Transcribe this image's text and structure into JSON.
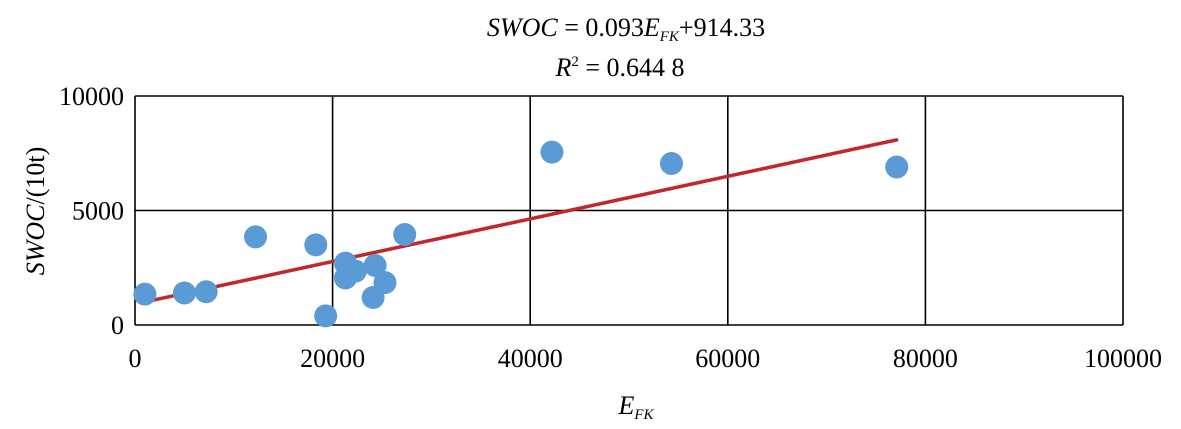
{
  "chart_data": {
    "type": "scatter",
    "title": {
      "line1": {
        "lhs": "SWOC",
        "eq": " = 0.093",
        "var": "E",
        "sub": "FK",
        "tail": "+914.33"
      },
      "line2": {
        "var": "R",
        "sup": "2",
        "tail": " = 0.644 8"
      }
    },
    "xlabel": {
      "main": "E",
      "sub": "FK"
    },
    "ylabel": {
      "main": "SWOC",
      "tail": "/(10t)"
    },
    "xlim": [
      0,
      100000
    ],
    "ylim": [
      0,
      10000
    ],
    "x_ticks": [
      "0",
      "20000",
      "40000",
      "60000",
      "80000",
      "100000"
    ],
    "y_ticks": [
      "0",
      "5000",
      "10000"
    ],
    "grid": true,
    "colors": {
      "points": "#5b9bd5",
      "trendline": "#c0282d",
      "grid": "#000000"
    },
    "points": [
      {
        "x": 1000,
        "y": 1350
      },
      {
        "x": 5000,
        "y": 1400
      },
      {
        "x": 7200,
        "y": 1450
      },
      {
        "x": 12200,
        "y": 3850
      },
      {
        "x": 18300,
        "y": 3500
      },
      {
        "x": 19300,
        "y": 400
      },
      {
        "x": 21300,
        "y": 2700
      },
      {
        "x": 21300,
        "y": 2050
      },
      {
        "x": 22300,
        "y": 2350
      },
      {
        "x": 24300,
        "y": 2600
      },
      {
        "x": 24100,
        "y": 1200
      },
      {
        "x": 25300,
        "y": 1850
      },
      {
        "x": 27300,
        "y": 3950
      },
      {
        "x": 42200,
        "y": 7550
      },
      {
        "x": 54300,
        "y": 7050
      },
      {
        "x": 77100,
        "y": 6900
      }
    ],
    "trendline": {
      "slope": 0.093,
      "intercept": 914.33,
      "x_start": 1000,
      "x_end": 77100
    }
  }
}
